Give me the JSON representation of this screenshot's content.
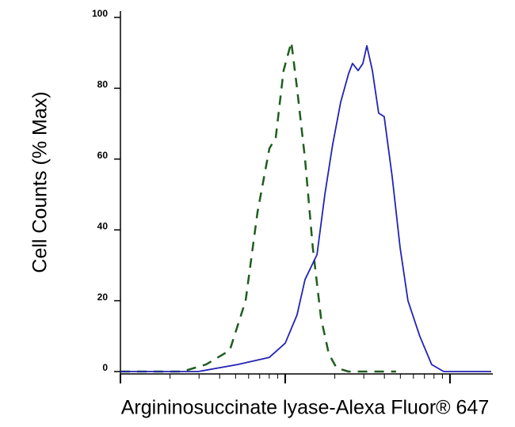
{
  "chart_data": {
    "type": "line",
    "xlabel": "Argininosuccinate lyase-Alexa Fluor® 647",
    "ylabel": "Cell Counts (% Max)",
    "xscale": "log",
    "xlim": [
      1,
      178
    ],
    "xticks": [
      1,
      10,
      100
    ],
    "ylim": [
      0,
      100
    ],
    "yticks": [
      0,
      20,
      40,
      60,
      80,
      100
    ],
    "series": [
      {
        "color": "#1e5e1e",
        "linestyle": "dashed",
        "x": [
          1,
          2.37,
          3.31,
          4.61,
          5.75,
          6.79,
          8.02,
          8.76,
          9.77,
          10.9,
          11.8,
          13.2,
          14.7,
          16.5,
          18.4,
          20.5,
          24.2,
          47.1
        ],
        "values": [
          0,
          0,
          2,
          6,
          20,
          45,
          63,
          66,
          85,
          93,
          80,
          60,
          35,
          15,
          5,
          1,
          0,
          0
        ]
      },
      {
        "color": "#2323b4",
        "linestyle": "solid",
        "x": [
          1,
          2.96,
          5.15,
          8.02,
          10,
          11.8,
          13.2,
          15.6,
          17.4,
          19.4,
          21.7,
          24.2,
          25.6,
          27.7,
          29.6,
          31.3,
          33.8,
          36.9,
          39.9,
          44.6,
          49.8,
          55.6,
          65.6,
          77.4,
          91.6,
          178
        ],
        "values": [
          0,
          0,
          2,
          4,
          8,
          16,
          26,
          33,
          50,
          64,
          76,
          84,
          87,
          85,
          87,
          92,
          85,
          73,
          72,
          55,
          35,
          20,
          10,
          2,
          0,
          0
        ]
      }
    ]
  }
}
